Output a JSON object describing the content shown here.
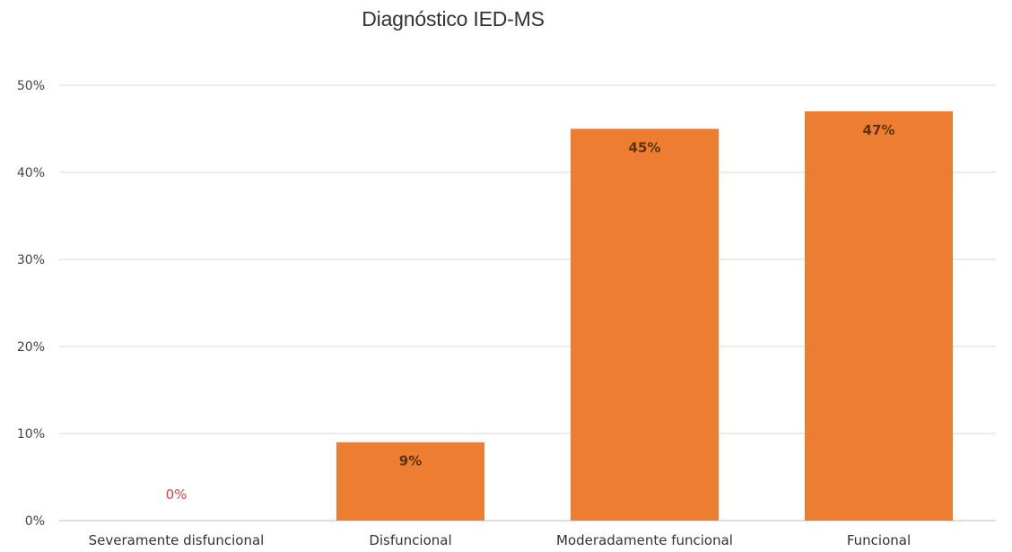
{
  "chart_data": {
    "type": "bar",
    "title": "Diagnóstico IED-MS",
    "categories": [
      "Severamente disfuncional",
      "Disfuncional",
      "Moderadamente funcional",
      "Funcional"
    ],
    "values": [
      0,
      9,
      45,
      47
    ],
    "data_labels": [
      "0%",
      "9%",
      "45%",
      "47%"
    ],
    "ylim": [
      0,
      50
    ],
    "yticks": [
      0,
      10,
      20,
      30,
      40,
      50
    ],
    "ytick_labels": [
      "0%",
      "10%",
      "20%",
      "30%",
      "40%",
      "50%"
    ],
    "grid": true,
    "legend": "none",
    "bar_color": "#ed7d31",
    "zero_label_color": "#e04040"
  }
}
